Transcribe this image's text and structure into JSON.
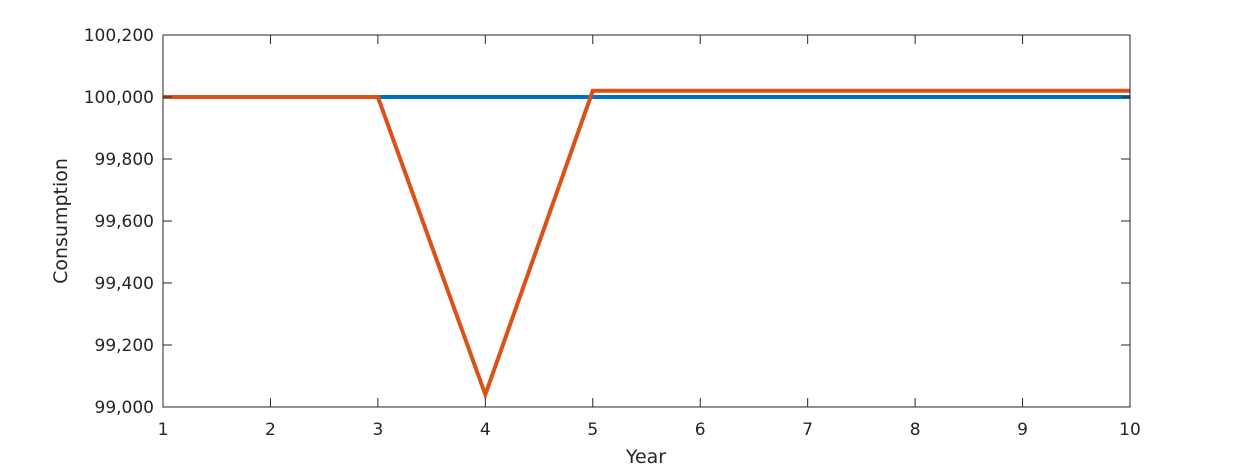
{
  "chart_data": {
    "type": "line",
    "xlabel": "Year",
    "ylabel": "Consumption",
    "xlim": [
      1,
      10
    ],
    "ylim": [
      99000,
      100200
    ],
    "xticks": [
      1,
      2,
      3,
      4,
      5,
      6,
      7,
      8,
      9,
      10
    ],
    "xtick_labels": [
      "1",
      "2",
      "3",
      "4",
      "5",
      "6",
      "7",
      "8",
      "9",
      "10"
    ],
    "yticks": [
      99000,
      99200,
      99400,
      99600,
      99800,
      100000,
      100200
    ],
    "ytick_labels": [
      "99,000",
      "99,200",
      "99,400",
      "99,600",
      "99,800",
      "100,000",
      "100,200"
    ],
    "grid": false,
    "box": true,
    "series": [
      {
        "color": "#0072BD",
        "x": [
          1,
          2,
          3,
          4,
          5,
          6,
          7,
          8,
          9,
          10
        ],
        "y": [
          100000,
          100000,
          100000,
          100000,
          100000,
          100000,
          100000,
          100000,
          100000,
          100000
        ]
      },
      {
        "color": "#D95319",
        "x": [
          1,
          2,
          3,
          4,
          5,
          6,
          7,
          8,
          9,
          10
        ],
        "y": [
          100000,
          100000,
          100000,
          99040,
          100020,
          100020,
          100020,
          100020,
          100020,
          100020
        ]
      }
    ]
  }
}
